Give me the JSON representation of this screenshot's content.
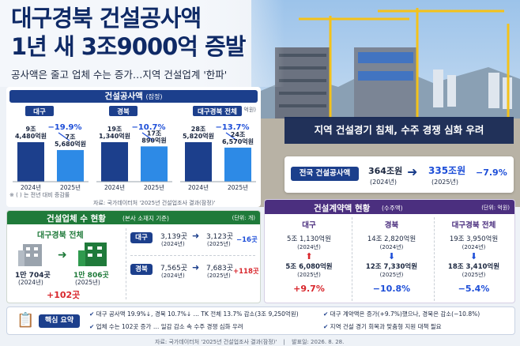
{
  "headline": {
    "line1": "대구경북 건설공사액",
    "line2": "1년 새 3조9000억 증발",
    "subtitle": "공사액은 줄고 업체 수는 증가…지역 건설업계 '한파'"
  },
  "photo_banner": "지역 건설경기 침체, 수주 경쟁 심화 우려",
  "national": {
    "label": "전국 건설공사액",
    "from_value": "364조원",
    "from_year": "(2024년)",
    "to_value": "335조원",
    "to_year": "(2025년)",
    "change": "−7.9%"
  },
  "chart_data": {
    "type": "bar",
    "title": "건설공사액",
    "title_note": "(잠정)",
    "unit": "(단위: 억원)",
    "categories": [
      "2024년",
      "2025년"
    ],
    "groups": [
      {
        "name": "대구",
        "values": [
          94480,
          75680
        ],
        "labels": [
          "9조\n4,480억원",
          "7조\n5,680억원"
        ],
        "change": "−19.9%"
      },
      {
        "name": "경북",
        "values": [
          191340,
          170890
        ],
        "labels": [
          "19조\n1,340억원",
          "17조\n890억원"
        ],
        "change": "−10.7%"
      },
      {
        "name": "대구경북 전체",
        "values": [
          285820,
          246570
        ],
        "labels": [
          "28조\n5,820억원",
          "24조\n6,570억원"
        ],
        "change": "−13.7%"
      }
    ],
    "colors": {
      "y2024": "#1c3f8c",
      "y2025": "#2d8ae6"
    },
    "footnote": "※ ( ) 는 전년 대비 증감률",
    "source": "자료: 국가데이터처 '2025년 건설업조사 결과(잠정)'"
  },
  "firms": {
    "title": "건설업체 수 현황",
    "title_note": "(본사 소재지 기준)",
    "unit": "(단위: 개)",
    "total_label": "대구경북 전체",
    "from_value": "1만 704곳",
    "from_year": "(2024년)",
    "to_value": "1만 806곳",
    "to_year": "(2025년)",
    "change": "+102곳",
    "rows": [
      {
        "name": "대구",
        "from": "3,139곳",
        "from_year": "(2024년)",
        "to": "3,123곳",
        "to_year": "(2025년)",
        "change": "−16곳"
      },
      {
        "name": "경북",
        "from": "7,565곳",
        "from_year": "(2024년)",
        "to": "7,683곳",
        "to_year": "(2025년)",
        "change": "+118곳"
      }
    ]
  },
  "contracts": {
    "title": "건설계약액 현황",
    "title_note": "(수주액)",
    "unit": "(단위: 억원)",
    "cols": [
      {
        "name": "대구",
        "from": "5조 1,130억원",
        "from_year": "(2024년)",
        "to": "5조 6,080억원",
        "to_year": "(2025년)",
        "change": "+9.7%",
        "dir": "up"
      },
      {
        "name": "경북",
        "from": "14조 2,820억원",
        "from_year": "(2024년)",
        "to": "12조 7,330억원",
        "to_year": "(2025년)",
        "change": "−10.8%",
        "dir": "down"
      },
      {
        "name": "대구경북 전체",
        "from": "19조 3,950억원",
        "from_year": "(2024년)",
        "to": "18조 3,410억원",
        "to_year": "(2025년)",
        "change": "−5.4%",
        "dir": "down"
      }
    ]
  },
  "summary": {
    "label": "핵심 요약",
    "items": [
      "대구 공사액 19.9%↓, 경북 10.7%↓ … TK 전체 13.7% 감소(3조 9,250억원)",
      "업체 수는 102곳 증가 … 일감 감소 속 수주 경쟁 심화 우려",
      "대구 계약액은 증가(+9.7%)했으나, 경북은 감소(−10.8%)",
      "지역 건설 경기 회복과 맞춤형 지원 대책 필요"
    ]
  },
  "footer": {
    "source": "자료: 국가데이터처 '2025년 건설업조사 결과(잠정)'",
    "separator": "|",
    "date": "발표일: 2026. 8. 28."
  }
}
